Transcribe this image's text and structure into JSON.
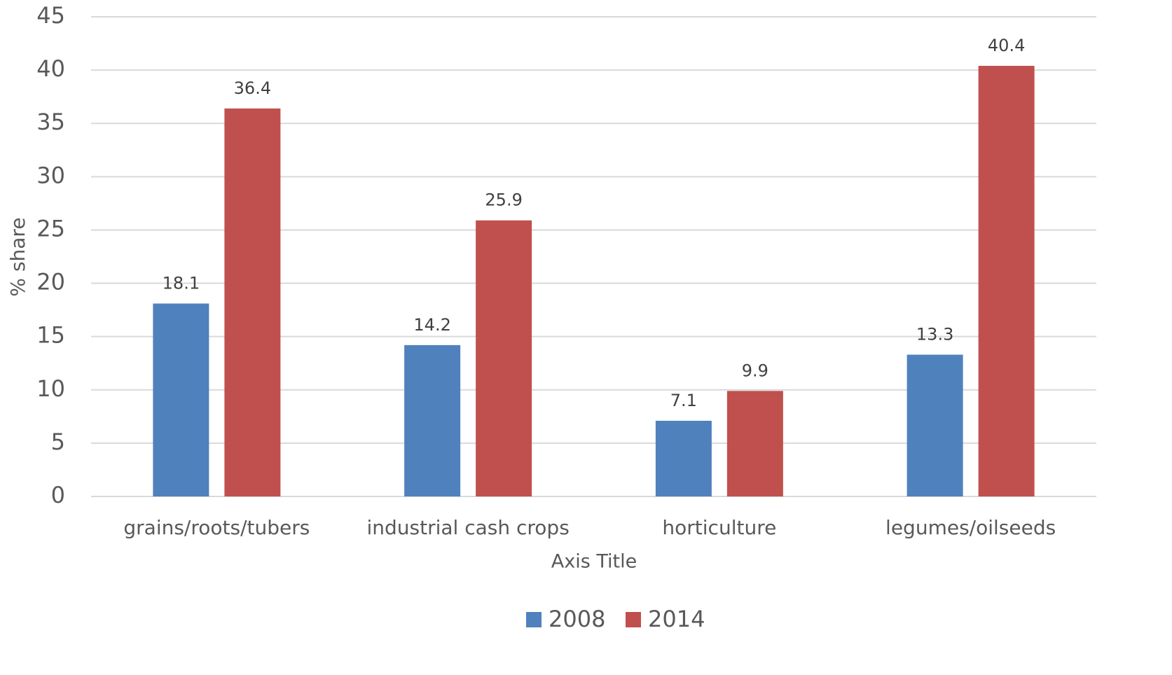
{
  "chart_data": {
    "type": "bar",
    "categories": [
      "grains/roots/tubers",
      "industrial cash crops",
      "horticulture",
      "legumes/oilseeds"
    ],
    "series": [
      {
        "name": "2008",
        "color": "#4f81bd",
        "values": [
          18.1,
          14.2,
          7.1,
          13.3
        ]
      },
      {
        "name": "2014",
        "color": "#c0504d",
        "values": [
          36.4,
          25.9,
          9.9,
          40.4
        ]
      }
    ],
    "ylabel": "% share",
    "xlabel": "Axis Title",
    "ylim": [
      0,
      45
    ],
    "yticks": [
      0,
      5,
      10,
      15,
      20,
      25,
      30,
      35,
      40,
      45
    ],
    "grid": true,
    "legend": "bottom"
  }
}
